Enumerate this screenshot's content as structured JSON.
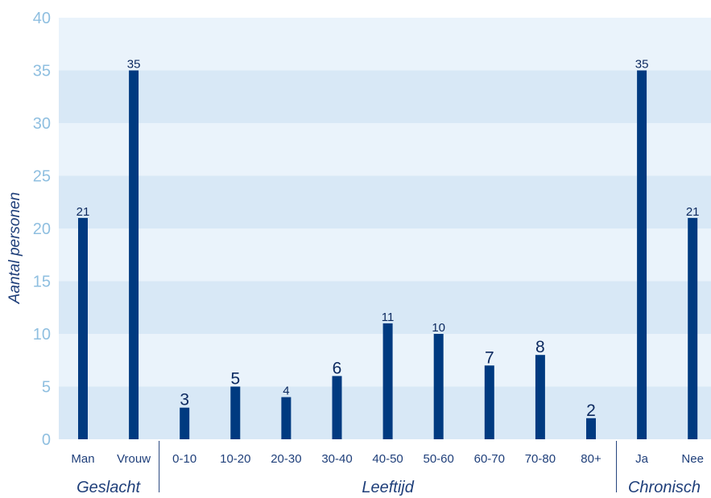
{
  "colors": {
    "bar": "#003a80",
    "band_dark": "#d8e8f6",
    "band_light": "#eaf3fb",
    "axis_text": "#8fbfe0",
    "label_text": "#1f3f7a"
  },
  "chart_data": {
    "type": "bar",
    "ylabel": "Aantal personen",
    "ylim": [
      0,
      40
    ],
    "yticks": [
      0,
      5,
      10,
      15,
      20,
      25,
      30,
      35,
      40
    ],
    "grid": "alternating horizontal bands",
    "categories": [
      "Man",
      "Vrouw",
      "0-10",
      "10-20",
      "20-30",
      "30-40",
      "40-50",
      "50-60",
      "60-70",
      "70-80",
      "80+",
      "Ja",
      "Nee"
    ],
    "values": [
      21,
      35,
      3,
      5,
      4,
      6,
      11,
      10,
      7,
      8,
      2,
      35,
      21
    ],
    "groups": [
      {
        "label": "Geslacht",
        "categories": [
          "Man",
          "Vrouw"
        ]
      },
      {
        "label": "Leeftijd",
        "categories": [
          "0-10",
          "10-20",
          "20-30",
          "30-40",
          "40-50",
          "50-60",
          "60-70",
          "70-80",
          "80+"
        ]
      },
      {
        "label": "Chronisch",
        "categories": [
          "Ja",
          "Nee"
        ]
      }
    ]
  }
}
